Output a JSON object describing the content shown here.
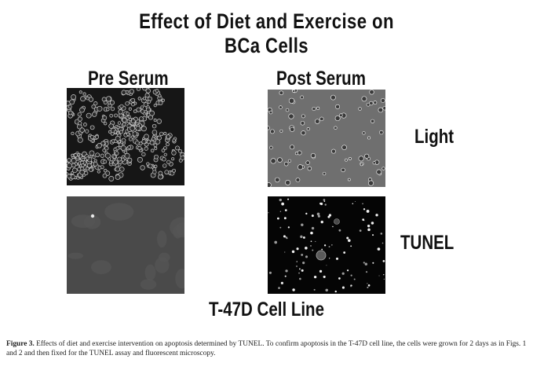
{
  "title": {
    "line1": "Effect of Diet and Exercise on",
    "line2": "BCa Cells"
  },
  "columns": {
    "pre": "Pre Serum",
    "post": "Post Serum"
  },
  "rows": {
    "light": "Light",
    "tunel": "TUNEL"
  },
  "cell_line": "T-47D Cell Line",
  "caption": {
    "label": "Figure 3.",
    "text": "  Effects of diet and exercise intervention on apoptosis determined by TUNEL. To confirm apoptosis in the T-47D cell line, the cells were grown for 2 days as in Figs. 1 and 2 and then fixed for the TUNEL assay and fluorescent microscopy."
  },
  "panels": [
    {
      "name": "pre-serum-light",
      "style": "pre-light"
    },
    {
      "name": "post-serum-light",
      "style": "post-light"
    },
    {
      "name": "pre-serum-tunel",
      "style": "pre-tunel"
    },
    {
      "name": "post-serum-tunel",
      "style": "post-tunel"
    }
  ]
}
